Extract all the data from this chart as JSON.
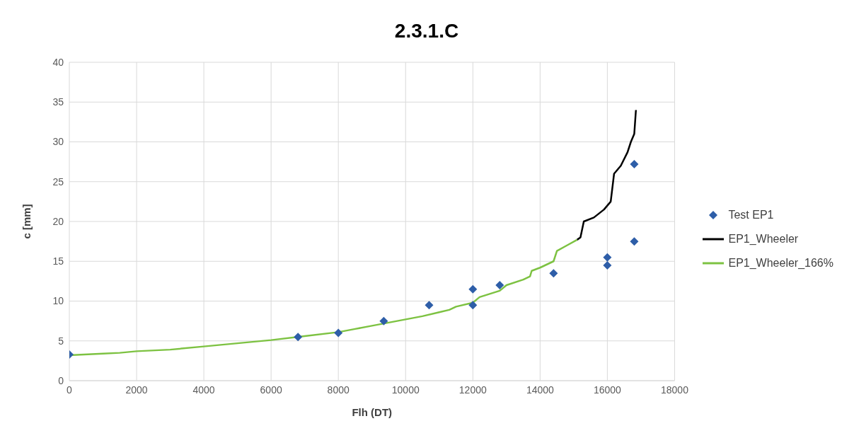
{
  "chart_data": {
    "type": "line",
    "title": "2.3.1.C",
    "xlabel": "Flh (DT)",
    "ylabel": "c [mm]",
    "xlim": [
      0,
      18000
    ],
    "xticks": [
      0,
      2000,
      4000,
      6000,
      8000,
      10000,
      12000,
      14000,
      16000,
      18000
    ],
    "ylim": [
      0,
      40
    ],
    "yticks": [
      0,
      5,
      10,
      15,
      20,
      25,
      30,
      35,
      40
    ],
    "grid": true,
    "legend": "right",
    "series": [
      {
        "name": "Test EP1",
        "type": "scatter",
        "marker": "diamond",
        "color": "#2e5ea8",
        "x": [
          0,
          6800,
          8000,
          9350,
          10700,
          12000,
          12000,
          12800,
          14400,
          16000,
          16000,
          16800,
          16800
        ],
        "values": [
          3.3,
          5.5,
          6,
          7.5,
          9.5,
          11.5,
          9.5,
          12,
          13.5,
          15.5,
          14.5,
          27.2,
          17.5
        ]
      },
      {
        "name": "EP1_Wheeler",
        "type": "line",
        "marker": "none",
        "color": "#000000",
        "x": [
          15100,
          15200,
          15300,
          15600,
          15900,
          16100,
          16200,
          16400,
          16600,
          16700,
          16800,
          16850
        ],
        "values": [
          17.7,
          18,
          20,
          20.5,
          21.5,
          22.5,
          26,
          27,
          28.7,
          30,
          31,
          34
        ]
      },
      {
        "name": "EP1_Wheeler_166%",
        "type": "line",
        "marker": "none",
        "color": "#7dc242",
        "x": [
          0,
          1000,
          1500,
          2000,
          3000,
          4000,
          5000,
          6000,
          7000,
          8000,
          8500,
          9000,
          9500,
          10000,
          10500,
          11000,
          11300,
          11500,
          12000,
          12200,
          12500,
          12800,
          13000,
          13500,
          13700,
          13750,
          14000,
          14400,
          14500,
          14800,
          15100
        ],
        "values": [
          3.2,
          3.4,
          3.5,
          3.7,
          3.9,
          4.3,
          4.7,
          5.1,
          5.6,
          6.1,
          6.5,
          6.9,
          7.3,
          7.7,
          8.1,
          8.6,
          8.9,
          9.3,
          9.8,
          10.5,
          10.9,
          11.3,
          12,
          12.7,
          13.1,
          13.8,
          14.2,
          15,
          16.3,
          17,
          17.7
        ]
      }
    ]
  }
}
